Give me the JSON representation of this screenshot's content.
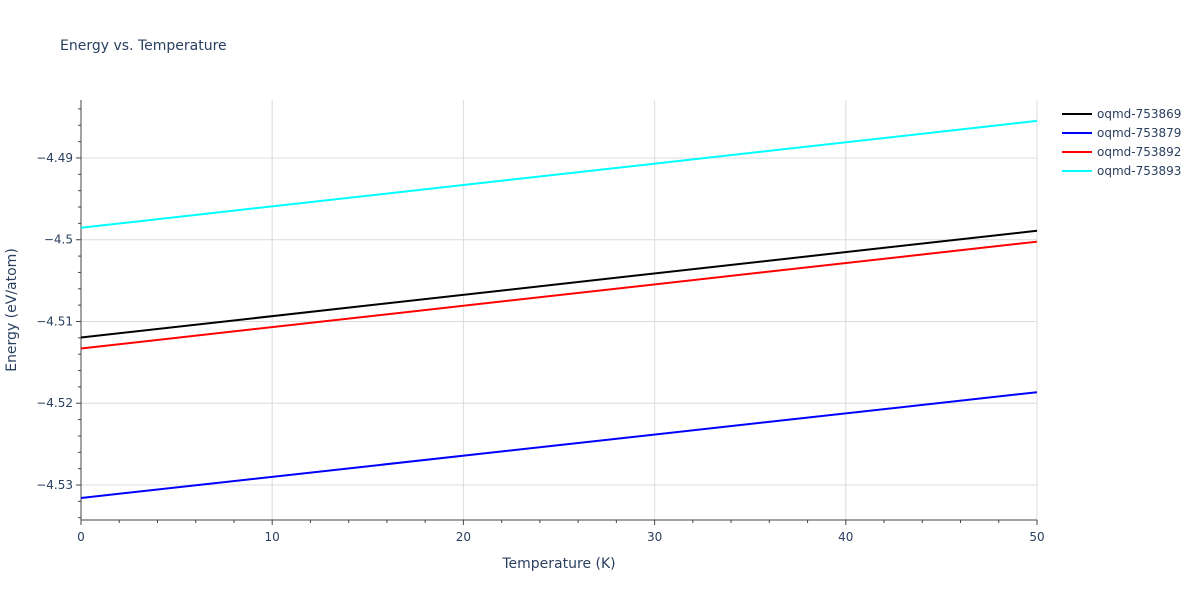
{
  "chart_data": {
    "type": "line",
    "title": "Energy vs. Temperature",
    "xlabel": "Temperature (K)",
    "ylabel": "Energy (eV/atom)",
    "xlim": [
      0,
      50
    ],
    "ylim": [
      -4.53428,
      -4.48291
    ],
    "x_ticks": [
      0,
      10,
      20,
      30,
      40,
      50
    ],
    "x_tick_labels": [
      "0",
      "10",
      "20",
      "30",
      "40",
      "50"
    ],
    "y_ticks": [
      -4.53,
      -4.52,
      -4.51,
      -4.5,
      -4.49
    ],
    "y_tick_labels": [
      "−4.53",
      "−4.52",
      "−4.51",
      "−4.5",
      "−4.49"
    ],
    "grid": true,
    "legend_position": "top-right",
    "series": [
      {
        "name": "oqmd-753869",
        "color": "#000000",
        "x": [
          0,
          50
        ],
        "y": [
          -4.51196,
          -4.4989
        ]
      },
      {
        "name": "oqmd-753879",
        "color": "#0000ff",
        "x": [
          0,
          50
        ],
        "y": [
          -4.53159,
          -4.51865
        ]
      },
      {
        "name": "oqmd-753892",
        "color": "#ff0000",
        "x": [
          0,
          50
        ],
        "y": [
          -4.5133,
          -4.50024
        ]
      },
      {
        "name": "oqmd-753893",
        "color": "#00ffff",
        "x": [
          0,
          50
        ],
        "y": [
          -4.49853,
          -4.48547
        ]
      }
    ]
  }
}
